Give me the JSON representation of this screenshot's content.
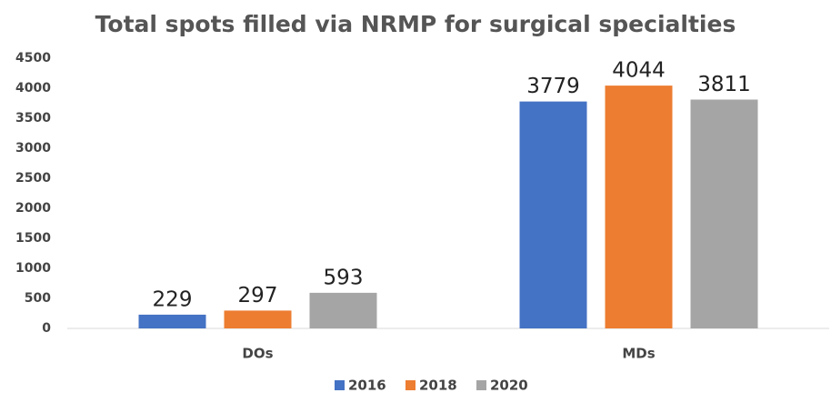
{
  "chart_data": {
    "type": "bar",
    "title": "Total spots filled via NRMP for surgical specialties",
    "categories": [
      "DOs",
      "MDs"
    ],
    "series": [
      {
        "name": "2016",
        "color": "#4472c4",
        "values": [
          229,
          3779
        ]
      },
      {
        "name": "2018",
        "color": "#ed7d31",
        "values": [
          297,
          4044
        ]
      },
      {
        "name": "2020",
        "color": "#a5a5a5",
        "values": [
          593,
          3811
        ]
      }
    ],
    "ylim": [
      0,
      4500
    ],
    "yticks": [
      0,
      500,
      1000,
      1500,
      2000,
      2500,
      3000,
      3500,
      4000,
      4500
    ],
    "grid": false,
    "legend": "bottom",
    "data_labels": true
  }
}
